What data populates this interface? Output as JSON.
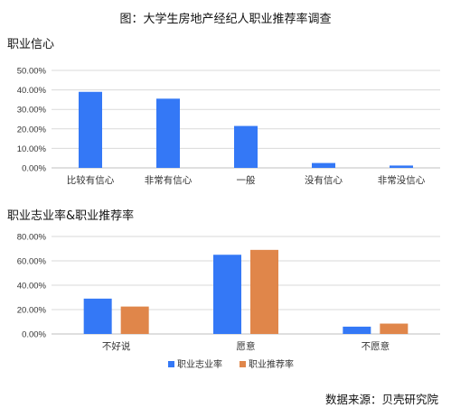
{
  "figure_title": "图：大学生房地产经纪人职业推荐率调查",
  "source": "数据来源：贝壳研究院",
  "colors": {
    "blue": "#3478f6",
    "orange": "#e0864a"
  },
  "chart_data": [
    {
      "type": "bar",
      "title": "职业信心",
      "categories": [
        "比较有信心",
        "非常有信心",
        "一般",
        "没有信心",
        "非常没信心"
      ],
      "series": [
        {
          "values": [
            39.0,
            35.5,
            21.5,
            2.5,
            1.2
          ]
        }
      ],
      "ylim": [
        0,
        50
      ],
      "yticks": [
        "0.00%",
        "10.00%",
        "20.00%",
        "30.00%",
        "40.00%",
        "50.00%"
      ],
      "grid": true
    },
    {
      "type": "bar",
      "title": "职业志业率&职业推荐率",
      "categories": [
        "不好说",
        "愿意",
        "不愿意"
      ],
      "series": [
        {
          "name": "职业志业率",
          "values": [
            29.0,
            65.0,
            6.0
          ]
        },
        {
          "name": "职业推荐率",
          "values": [
            22.5,
            69.0,
            8.5
          ]
        }
      ],
      "ylim": [
        0,
        80
      ],
      "yticks": [
        "0.00%",
        "20.00%",
        "40.00%",
        "60.00%",
        "80.00%"
      ],
      "legend": "bottom",
      "grid": true
    }
  ]
}
